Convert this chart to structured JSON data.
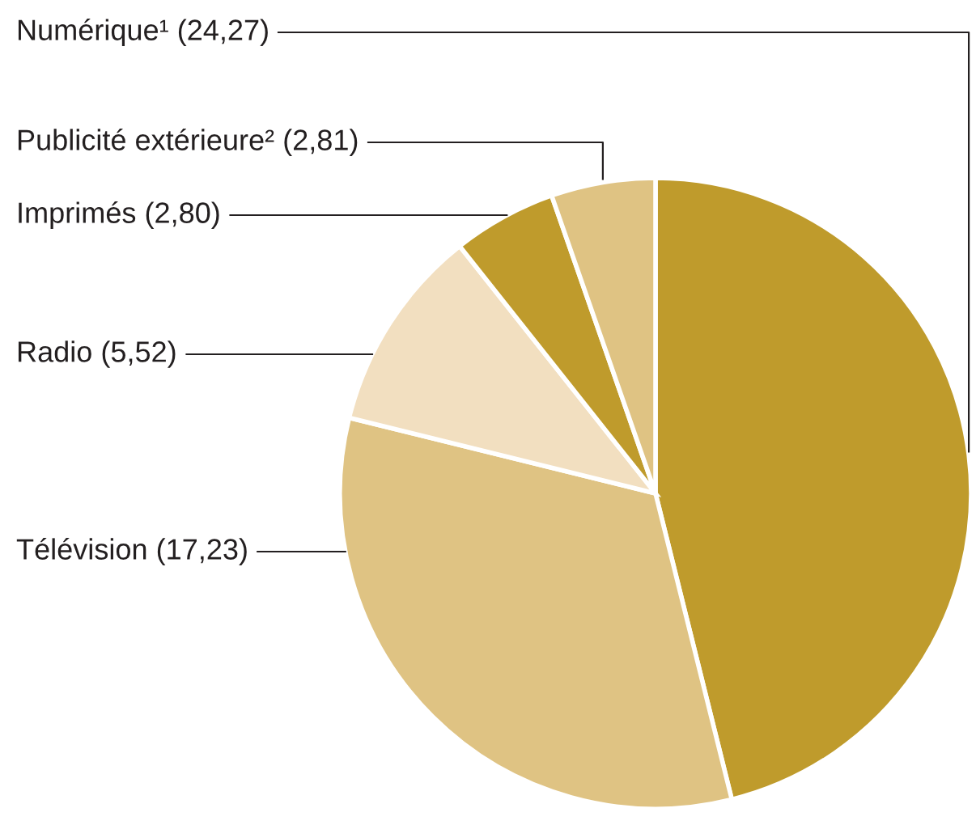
{
  "chart_data": {
    "type": "pie",
    "categories": [
      "Numérique¹",
      "Télévision",
      "Radio",
      "Imprimés",
      "Publicité extérieure²"
    ],
    "values": [
      24.27,
      17.23,
      5.52,
      2.8,
      2.81
    ],
    "value_labels": [
      "(24,27)",
      "(17,23)",
      "(5,52)",
      "(2,80)",
      "(2,81)"
    ],
    "colors": [
      "#bf9b2c",
      "#dfc383",
      "#f2dfc0",
      "#bf9b2c",
      "#dfc383"
    ],
    "legend": false
  }
}
